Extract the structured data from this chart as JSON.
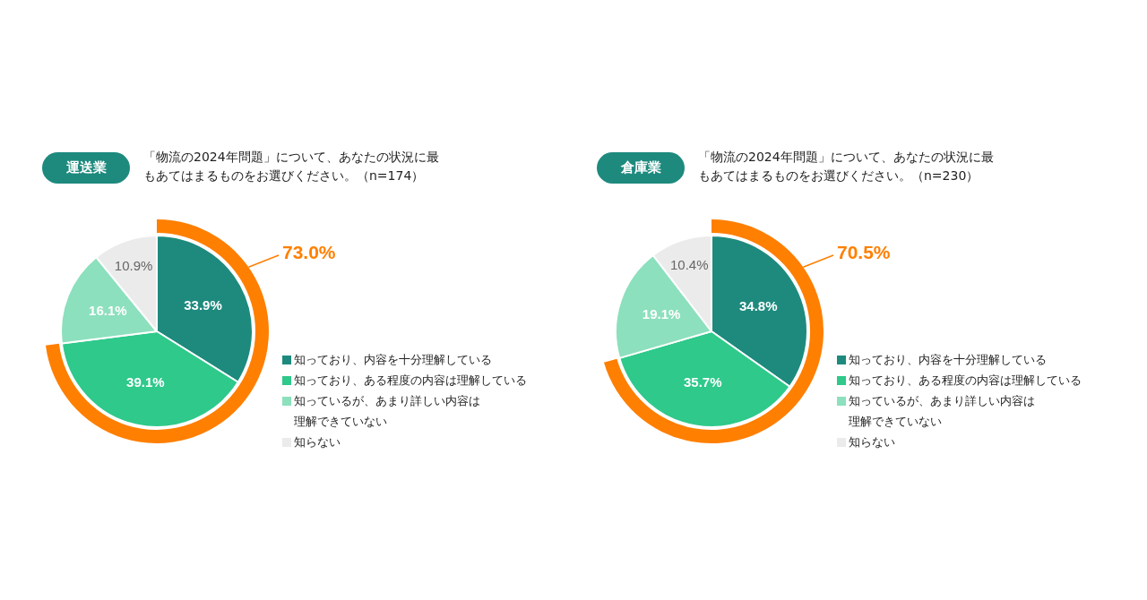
{
  "chart_data": [
    {
      "type": "pie",
      "subtitle": "運送業",
      "title": "「物流の2024年問題」について、あなたの状況に最もあてはまるものをお選びください。（n=174）",
      "categories": [
        "知っており、内容を十分理解している",
        "知っており、ある程度の内容は理解している",
        "知っているが、あまり詳しい内容は理解できていない",
        "知らない"
      ],
      "values": [
        33.9,
        39.1,
        16.1,
        10.9
      ],
      "colors": [
        "#1e8a7e",
        "#2ec98b",
        "#8ce0bd",
        "#ebebeb"
      ],
      "value_labels": [
        "33.9%",
        "39.1%",
        "16.1%",
        "10.9%"
      ],
      "annotations": [
        "73.0%"
      ],
      "legend": "right"
    },
    {
      "type": "pie",
      "subtitle": "倉庫業",
      "title": "「物流の2024年問題」について、あなたの状況に最もあてはまるものをお選びください。（n=230）",
      "categories": [
        "知っており、内容を十分理解している",
        "知っており、ある程度の内容は理解している",
        "知っているが、あまり詳しい内容は理解できていない",
        "知らない"
      ],
      "values": [
        34.8,
        35.7,
        19.1,
        10.4
      ],
      "colors": [
        "#1e8a7e",
        "#2ec98b",
        "#8ce0bd",
        "#ebebeb"
      ],
      "value_labels": [
        "34.8%",
        "35.7%",
        "19.1%",
        "10.4%"
      ],
      "annotations": [
        "70.5%"
      ],
      "legend": "right"
    }
  ]
}
